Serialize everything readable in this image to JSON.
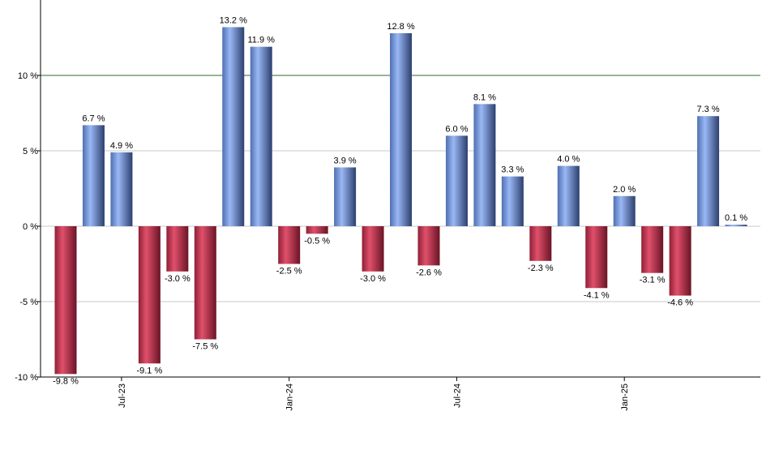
{
  "chart_data": {
    "type": "bar",
    "title": "",
    "xlabel": "",
    "ylabel": "",
    "ylim": [
      -10,
      15
    ],
    "y_ticks": [
      {
        "value": -10,
        "label": "-10 %"
      },
      {
        "value": -5,
        "label": "-5 %"
      },
      {
        "value": 0,
        "label": "0 %"
      },
      {
        "value": 5,
        "label": "5 %"
      },
      {
        "value": 10,
        "label": "10 %"
      }
    ],
    "reference_line": {
      "value": 10,
      "color": "#2e6b2e"
    },
    "x_ticks": [
      {
        "index": 2,
        "label": "Jul-23"
      },
      {
        "index": 8,
        "label": "Jan-24"
      },
      {
        "index": 14,
        "label": "Jul-24"
      },
      {
        "index": 20,
        "label": "Jan-25"
      }
    ],
    "values": [
      -9.8,
      6.7,
      4.9,
      -9.1,
      -3.0,
      -7.5,
      13.2,
      11.9,
      -2.5,
      -0.5,
      3.9,
      -3.0,
      12.8,
      -2.6,
      6.0,
      8.1,
      3.3,
      -2.3,
      4.0,
      -4.1,
      2.0,
      -3.1,
      -4.6,
      7.3,
      0.1
    ],
    "labels": [
      "-9.8 %",
      "6.7 %",
      "4.9 %",
      "-9.1 %",
      "-3.0 %",
      "-7.5 %",
      "13.2 %",
      "11.9 %",
      "-2.5 %",
      "-0.5 %",
      "3.9 %",
      "-3.0 %",
      "12.8 %",
      "-2.6 %",
      "6.0 %",
      "8.1 %",
      "3.3 %",
      "-2.3 %",
      "4.0 %",
      "-4.1 %",
      "2.0 %",
      "-3.1 %",
      "-4.6 %",
      "7.3 %",
      "0.1 %"
    ],
    "colors": {
      "positive": "#6f8fd6",
      "negative": "#c8364f",
      "grid": "#c8c8c8",
      "axis": "#000000"
    }
  }
}
